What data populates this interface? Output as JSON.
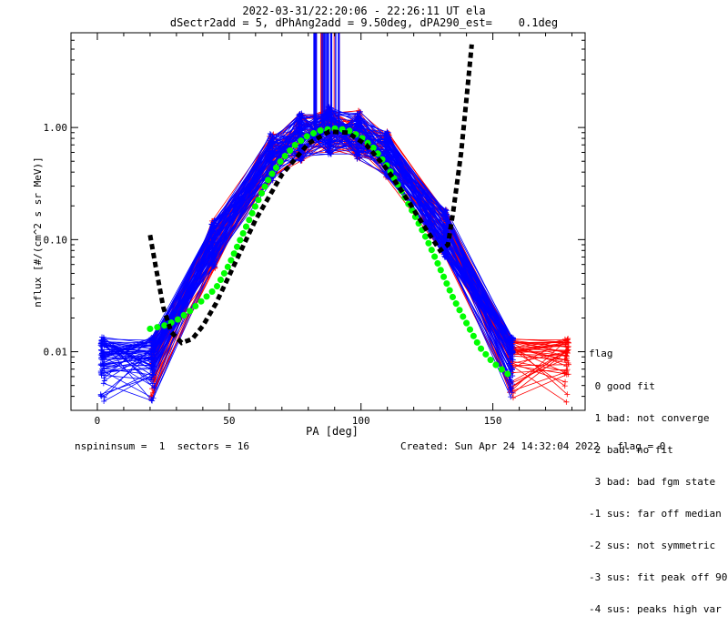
{
  "chart_data": {
    "type": "line",
    "title": "2022-03-31/22:20:06 - 22:26:11 UT ela",
    "subtitle": "dSectr2add = 5, dPhAng2add = 9.50deg, dPA290_est=    0.1deg",
    "xlabel": "PA [deg]",
    "ylabel": "nflux [#/(cm^2 s sr MeV)]",
    "xlim": [
      -10,
      185
    ],
    "ylim": [
      0.003,
      7
    ],
    "yscale": "log",
    "x_ticks": [
      0,
      50,
      100,
      150
    ],
    "y_ticks": [
      0.01,
      0.1,
      1.0
    ],
    "y_tick_labels": [
      "0.01",
      "0.10",
      "1.00"
    ],
    "series": [
      {
        "color": "#00ff00",
        "style": "dotted-thick",
        "x": [
          20,
          25,
          30,
          35,
          40,
          45,
          50,
          55,
          60,
          65,
          70,
          75,
          80,
          85,
          90,
          95,
          100,
          105,
          110,
          115,
          120,
          125,
          130,
          135,
          140,
          145,
          150,
          155,
          157
        ],
        "y": [
          0.016,
          0.017,
          0.019,
          0.023,
          0.029,
          0.037,
          0.06,
          0.11,
          0.2,
          0.35,
          0.52,
          0.7,
          0.85,
          0.95,
          0.98,
          0.95,
          0.82,
          0.65,
          0.45,
          0.28,
          0.17,
          0.1,
          0.055,
          0.03,
          0.018,
          0.011,
          0.008,
          0.0065,
          0.006
        ]
      },
      {
        "color": "#000000",
        "style": "dashed-thick",
        "x": [
          20,
          22,
          25,
          28,
          32,
          36,
          40,
          45,
          52,
          60,
          70,
          80,
          88,
          95,
          102,
          110,
          118,
          125,
          130,
          133,
          135,
          138,
          140,
          142
        ],
        "y": [
          0.11,
          0.06,
          0.025,
          0.015,
          0.012,
          0.013,
          0.017,
          0.027,
          0.06,
          0.15,
          0.38,
          0.72,
          0.92,
          0.9,
          0.7,
          0.42,
          0.22,
          0.12,
          0.08,
          0.09,
          0.18,
          0.6,
          1.8,
          5.5
        ]
      }
    ]
  },
  "footer": {
    "left": "nspininsum =  1  sectors = 16",
    "right": "Created: Sun Apr 24 14:32:04 2022   flag = 0"
  },
  "legend": {
    "title": "flag",
    "items": [
      " 0 good fit",
      " 1 bad: not converge",
      " 2 bad: no fit",
      " 3 bad: bad fgm state",
      "-1 sus: far off median",
      "-2 sus: not symmetric",
      "-3 sus: fit peak off 90",
      "-4 sus: peaks high var"
    ]
  },
  "colors": {
    "red": "#ff0000",
    "blue": "#0000ff",
    "green": "#00ff00",
    "black": "#000000"
  }
}
